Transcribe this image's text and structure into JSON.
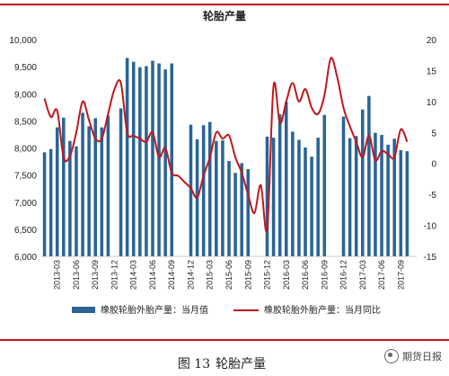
{
  "figure": {
    "caption_number": "图 13",
    "caption_title": "轮胎产量",
    "watermark": "期货日报",
    "watermark_icon": "wechat-icon"
  },
  "chart_data": {
    "type": "bar+line",
    "title": "轮胎产量",
    "categories": [
      "2013-01",
      "2013-02",
      "2013-03",
      "2013-04",
      "2013-05",
      "2013-06",
      "2013-07",
      "2013-08",
      "2013-09",
      "2013-10",
      "2013-11",
      "2013-12",
      "2014-01",
      "2014-02",
      "2014-03",
      "2014-04",
      "2014-05",
      "2014-06",
      "2014-07",
      "2014-08",
      "2014-09",
      "2014-10",
      "2014-11",
      "2014-12",
      "2015-01",
      "2015-02",
      "2015-03",
      "2015-04",
      "2015-05",
      "2015-06",
      "2015-07",
      "2015-08",
      "2015-09",
      "2015-10",
      "2015-11",
      "2015-12",
      "2016-01",
      "2016-02",
      "2016-03",
      "2016-04",
      "2016-05",
      "2016-06",
      "2016-07",
      "2016-08",
      "2016-09",
      "2016-10",
      "2016-11",
      "2016-12",
      "2017-01",
      "2017-02",
      "2017-03",
      "2017-04",
      "2017-05",
      "2017-06",
      "2017-07",
      "2017-08",
      "2017-09",
      "2017-10",
      "2017-11"
    ],
    "x_tick_labels": [
      "2013-03",
      "2013-06",
      "2013-09",
      "2013-12",
      "2014-03",
      "2014-06",
      "2014-09",
      "2014-12",
      "2015-03",
      "2015-06",
      "2015-09",
      "2015-12",
      "2016-03",
      "2016-06",
      "2016-09",
      "2016-12",
      "2017-03",
      "2017-06",
      "2017-09"
    ],
    "y_left": {
      "min": 6000,
      "max": 10000,
      "ticks": [
        "6,000",
        "6,500",
        "7,000",
        "7,500",
        "8,000",
        "8,500",
        "9,000",
        "9,500",
        "10,000"
      ]
    },
    "y_right": {
      "min": -15,
      "max": 20,
      "ticks": [
        "-15",
        "-10",
        "-5",
        "0",
        "5",
        "10",
        "15",
        "20"
      ]
    },
    "series": [
      {
        "name": "橡胶轮胎外胎产量：当月值",
        "kind": "bar",
        "axis": "left",
        "color": "#2a6496",
        "values": [
          7920,
          7980,
          8380,
          8560,
          8130,
          8030,
          8650,
          8400,
          8550,
          8380,
          8600,
          null,
          8730,
          9660,
          9590,
          9490,
          9510,
          9610,
          9560,
          9450,
          9560,
          null,
          null,
          8430,
          8160,
          8420,
          8480,
          8130,
          8140,
          7760,
          7540,
          7720,
          7610,
          null,
          null,
          8210,
          8190,
          8620,
          8850,
          8300,
          8150,
          8010,
          7840,
          8190,
          8610,
          null,
          null,
          8580,
          8180,
          8220,
          8710,
          8960,
          8280,
          8240,
          8060,
          8170,
          7960,
          7940,
          null
        ]
      },
      {
        "name": "橡胶轮胎外胎产量：当月同比",
        "kind": "line",
        "axis": "right",
        "color": "#c0171d",
        "values": [
          10.5,
          7.5,
          8.5,
          1.0,
          1.2,
          5.0,
          10.0,
          7.0,
          4.0,
          4.0,
          8.0,
          12.0,
          13.0,
          5.0,
          4.5,
          4.0,
          3.5,
          5.0,
          1.0,
          2.5,
          -1.5,
          -2.0,
          -3.0,
          -4.0,
          -5.5,
          -2.0,
          1.0,
          5.0,
          4.0,
          4.5,
          1.0,
          -1.5,
          -5.0,
          -8.0,
          -3.5,
          -10.5,
          12.5,
          6.5,
          10.0,
          13.0,
          10.0,
          12.0,
          9.0,
          8.0,
          11.0,
          17.0,
          14.0,
          9.0,
          6.0,
          3.5,
          1.0,
          4.5,
          0.5,
          2.0,
          1.5,
          1.0,
          5.5,
          3.5,
          null
        ]
      }
    ],
    "legend_position": "bottom",
    "grid": false
  }
}
